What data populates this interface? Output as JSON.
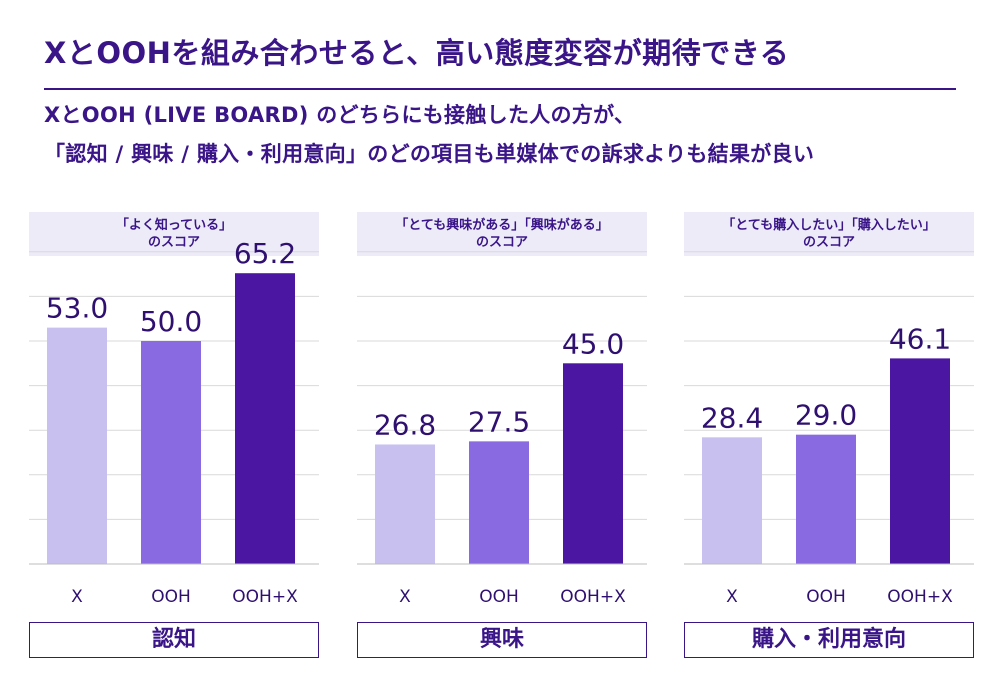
{
  "title": "XとOOHを組み合わせると、高い態度変容が期待できる",
  "subtitle": {
    "line1": "XとOOH (LIVE BOARD) のどちらにも接触した人の方が、",
    "line2": "「認知 / 興味 / 購入・利用意向」のどの項目も単媒体での訴求よりも結果が良い"
  },
  "colors": {
    "accent": "#3a1588",
    "bar_x": "#c8c0ef",
    "bar_ooh": "#8a6ae0",
    "bar_combo": "#4a16a2",
    "grid": "#d9d9d9",
    "header_bg": "#ecebf7"
  },
  "chart_data": [
    {
      "type": "bar",
      "title": "認知",
      "subtitle_line1": "「よく知っている」",
      "subtitle_line2": "のスコア",
      "categories": [
        "X",
        "OOH",
        "OOH+X"
      ],
      "values": [
        53.0,
        50.0,
        65.2
      ],
      "labels": [
        "53.0",
        "50.0",
        "65.2"
      ],
      "ylim": [
        0,
        70
      ]
    },
    {
      "type": "bar",
      "title": "興味",
      "subtitle_line1": "「とても興味がある」「興味がある」",
      "subtitle_line2": "のスコア",
      "categories": [
        "X",
        "OOH",
        "OOH+X"
      ],
      "values": [
        26.8,
        27.5,
        45.0
      ],
      "labels": [
        "26.8",
        "27.5",
        "45.0"
      ],
      "ylim": [
        0,
        70
      ]
    },
    {
      "type": "bar",
      "title": "購入・利用意向",
      "subtitle_line1": "「とても購入したい」「購入したい」",
      "subtitle_line2": "のスコア",
      "categories": [
        "X",
        "OOH",
        "OOH+X"
      ],
      "values": [
        28.4,
        29.0,
        46.1
      ],
      "labels": [
        "28.4",
        "29.0",
        "46.1"
      ],
      "ylim": [
        0,
        70
      ]
    }
  ]
}
